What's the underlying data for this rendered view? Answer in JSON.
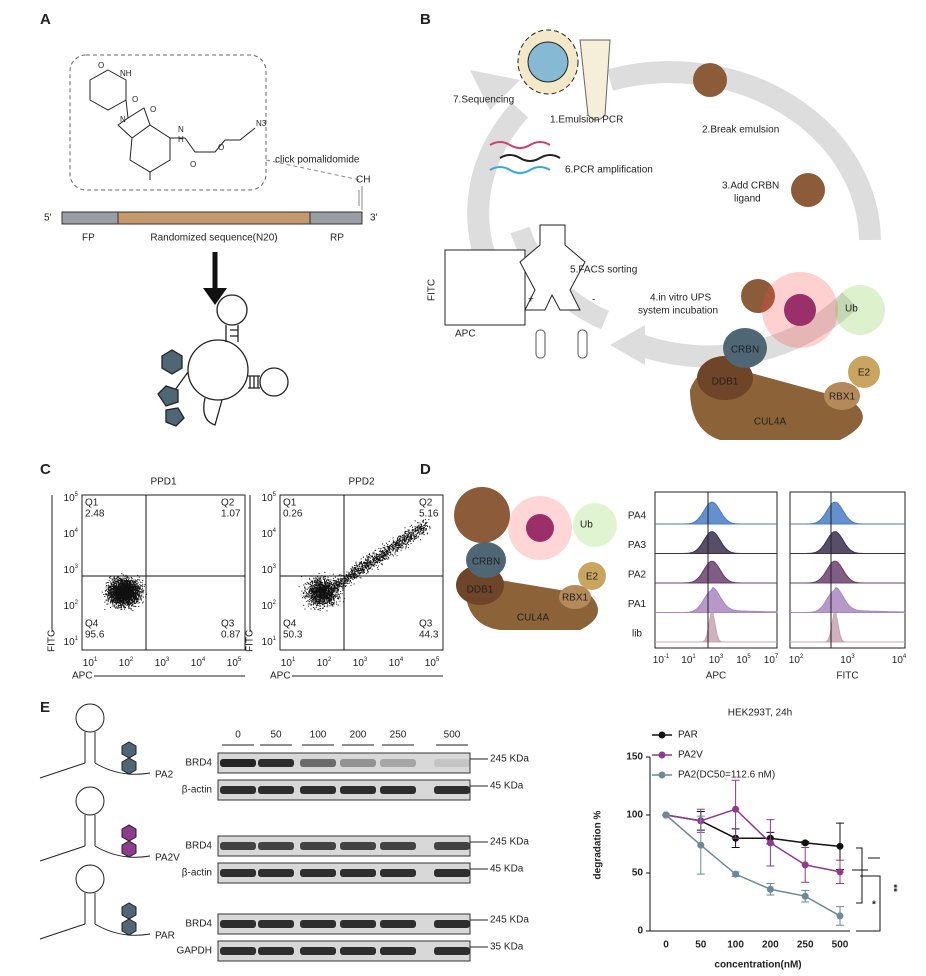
{
  "panel_labels": [
    "A",
    "B",
    "C",
    "D",
    "E"
  ],
  "panel_a": {
    "atoms": [
      "O",
      "NH",
      "O",
      "N",
      "O",
      "N",
      "H",
      "O",
      "O",
      "N3"
    ],
    "click": "click pomalidomide",
    "alkyne": "CH",
    "five": "5'",
    "three": "3'",
    "fp": "FP",
    "random": "Randomized sequence(N20)",
    "rp": "RP"
  },
  "panel_b": {
    "steps": [
      "1.Emulsion PCR",
      "2.Break emulsion",
      "3.Add CRBN",
      "ligand",
      "4.in vitro UPS",
      "system incubation",
      "5.FACS sorting",
      "6.PCR amplification",
      "7.Sequencing"
    ],
    "facs_y": "FITC",
    "facs_x": "APC",
    "plus": "+",
    "minus": "-",
    "proteins": [
      "CRBN",
      "DDB1",
      "CUL4A",
      "RBX1",
      "E2"
    ],
    "ub": "Ub"
  },
  "panel_c": {
    "tick_base": "10",
    "ticks": [
      "1",
      "2",
      "3",
      "4",
      "5"
    ],
    "x_label": "APC",
    "y_label": "FITC",
    "plots": [
      {
        "title": "PPD1",
        "quadrants": [
          {
            "name": "Q1",
            "value": 2.48
          },
          {
            "name": "Q2",
            "value": 1.07
          },
          {
            "name": "Q4",
            "value": 95.6
          },
          {
            "name": "Q3",
            "value": 0.87
          }
        ]
      },
      {
        "title": "PPD2",
        "quadrants": [
          {
            "name": "Q1",
            "value": 0.26
          },
          {
            "name": "Q2",
            "value": 5.16
          },
          {
            "name": "Q4",
            "value": 50.3
          },
          {
            "name": "Q3",
            "value": 44.3
          }
        ]
      }
    ]
  },
  "panel_d": {
    "samples": [
      "PA4",
      "PA3",
      "PA2",
      "PA1",
      "lib"
    ],
    "colors": [
      "#4a7cc4",
      "#3b2f4f",
      "#6b3f6e",
      "#a987c0",
      "#c9a3b3"
    ],
    "tick_base": "10",
    "apc": {
      "label": "APC",
      "ticks": [
        "-1",
        "1",
        "3",
        "5",
        "7"
      ]
    },
    "fitc": {
      "label": "FITC",
      "ticks": [
        "2",
        "3",
        "4"
      ]
    },
    "proteins": [
      "CRBN",
      "DDB1",
      "CUL4A",
      "RBX1",
      "E2"
    ],
    "ub": "Ub"
  },
  "panel_e": {
    "concentrations": [
      0,
      50,
      100,
      200,
      250,
      500
    ],
    "blots": [
      {
        "compound": "PA2",
        "rows": [
          {
            "protein": "BRD4",
            "size": "245 KDa"
          },
          {
            "protein": "β-actin",
            "size": "45 KDa"
          }
        ]
      },
      {
        "compound": "PA2V",
        "rows": [
          {
            "protein": "BRD4",
            "size": "245 KDa"
          },
          {
            "protein": "β-actin",
            "size": "45 KDa"
          }
        ]
      },
      {
        "compound": "PAR",
        "rows": [
          {
            "protein": "BRD4",
            "size": "245 KDa"
          },
          {
            "protein": "GAPDH",
            "size": "35 KDa"
          }
        ]
      }
    ]
  },
  "chart_data": {
    "type": "line",
    "title": "HEK293T, 24h",
    "x_label": "concentration(nM)",
    "y_label": "degradation %",
    "categories": [
      0,
      50,
      100,
      200,
      250,
      500
    ],
    "ylim": [
      0,
      150
    ],
    "yticks": [
      0,
      50,
      100,
      150
    ],
    "series": [
      {
        "name": "PAR",
        "color": "#111111",
        "values": [
          100,
          95,
          80,
          80,
          76,
          73
        ],
        "errors": [
          0,
          8,
          8,
          5,
          1,
          20
        ]
      },
      {
        "name": "PA2V",
        "color": "#8e3a8e",
        "values": [
          100,
          95,
          105,
          76,
          57,
          51
        ],
        "errors": [
          0,
          10,
          25,
          20,
          15,
          10
        ]
      },
      {
        "name": "PA2(DC50=112.6 nM)",
        "color": "#6b8a99",
        "values": [
          100,
          74,
          49,
          36,
          30,
          13
        ],
        "errors": [
          0,
          25,
          2,
          5,
          5,
          8
        ]
      }
    ],
    "significance": [
      "*",
      "**"
    ]
  }
}
